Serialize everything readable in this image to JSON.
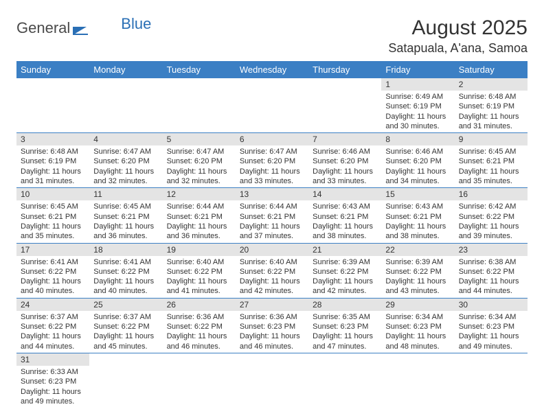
{
  "logo": {
    "part1": "General",
    "part2": "Blue"
  },
  "title": "August 2025",
  "location": "Satapuala, A'ana, Samoa",
  "colors": {
    "headerBg": "#3b7fc4",
    "headerText": "#ffffff",
    "dayNumBg": "#e4e4e4",
    "cellBorder": "#3b7fc4",
    "bodyText": "#333333",
    "logoGray": "#4a4a4a",
    "logoBlue": "#2a6fb5"
  },
  "dayHeaders": [
    "Sunday",
    "Monday",
    "Tuesday",
    "Wednesday",
    "Thursday",
    "Friday",
    "Saturday"
  ],
  "weeks": [
    [
      null,
      null,
      null,
      null,
      null,
      {
        "n": "1",
        "sunrise": "Sunrise: 6:49 AM",
        "sunset": "Sunset: 6:19 PM",
        "daylight": "Daylight: 11 hours and 30 minutes."
      },
      {
        "n": "2",
        "sunrise": "Sunrise: 6:48 AM",
        "sunset": "Sunset: 6:19 PM",
        "daylight": "Daylight: 11 hours and 31 minutes."
      }
    ],
    [
      {
        "n": "3",
        "sunrise": "Sunrise: 6:48 AM",
        "sunset": "Sunset: 6:19 PM",
        "daylight": "Daylight: 11 hours and 31 minutes."
      },
      {
        "n": "4",
        "sunrise": "Sunrise: 6:47 AM",
        "sunset": "Sunset: 6:20 PM",
        "daylight": "Daylight: 11 hours and 32 minutes."
      },
      {
        "n": "5",
        "sunrise": "Sunrise: 6:47 AM",
        "sunset": "Sunset: 6:20 PM",
        "daylight": "Daylight: 11 hours and 32 minutes."
      },
      {
        "n": "6",
        "sunrise": "Sunrise: 6:47 AM",
        "sunset": "Sunset: 6:20 PM",
        "daylight": "Daylight: 11 hours and 33 minutes."
      },
      {
        "n": "7",
        "sunrise": "Sunrise: 6:46 AM",
        "sunset": "Sunset: 6:20 PM",
        "daylight": "Daylight: 11 hours and 33 minutes."
      },
      {
        "n": "8",
        "sunrise": "Sunrise: 6:46 AM",
        "sunset": "Sunset: 6:20 PM",
        "daylight": "Daylight: 11 hours and 34 minutes."
      },
      {
        "n": "9",
        "sunrise": "Sunrise: 6:45 AM",
        "sunset": "Sunset: 6:21 PM",
        "daylight": "Daylight: 11 hours and 35 minutes."
      }
    ],
    [
      {
        "n": "10",
        "sunrise": "Sunrise: 6:45 AM",
        "sunset": "Sunset: 6:21 PM",
        "daylight": "Daylight: 11 hours and 35 minutes."
      },
      {
        "n": "11",
        "sunrise": "Sunrise: 6:45 AM",
        "sunset": "Sunset: 6:21 PM",
        "daylight": "Daylight: 11 hours and 36 minutes."
      },
      {
        "n": "12",
        "sunrise": "Sunrise: 6:44 AM",
        "sunset": "Sunset: 6:21 PM",
        "daylight": "Daylight: 11 hours and 36 minutes."
      },
      {
        "n": "13",
        "sunrise": "Sunrise: 6:44 AM",
        "sunset": "Sunset: 6:21 PM",
        "daylight": "Daylight: 11 hours and 37 minutes."
      },
      {
        "n": "14",
        "sunrise": "Sunrise: 6:43 AM",
        "sunset": "Sunset: 6:21 PM",
        "daylight": "Daylight: 11 hours and 38 minutes."
      },
      {
        "n": "15",
        "sunrise": "Sunrise: 6:43 AM",
        "sunset": "Sunset: 6:21 PM",
        "daylight": "Daylight: 11 hours and 38 minutes."
      },
      {
        "n": "16",
        "sunrise": "Sunrise: 6:42 AM",
        "sunset": "Sunset: 6:22 PM",
        "daylight": "Daylight: 11 hours and 39 minutes."
      }
    ],
    [
      {
        "n": "17",
        "sunrise": "Sunrise: 6:41 AM",
        "sunset": "Sunset: 6:22 PM",
        "daylight": "Daylight: 11 hours and 40 minutes."
      },
      {
        "n": "18",
        "sunrise": "Sunrise: 6:41 AM",
        "sunset": "Sunset: 6:22 PM",
        "daylight": "Daylight: 11 hours and 40 minutes."
      },
      {
        "n": "19",
        "sunrise": "Sunrise: 6:40 AM",
        "sunset": "Sunset: 6:22 PM",
        "daylight": "Daylight: 11 hours and 41 minutes."
      },
      {
        "n": "20",
        "sunrise": "Sunrise: 6:40 AM",
        "sunset": "Sunset: 6:22 PM",
        "daylight": "Daylight: 11 hours and 42 minutes."
      },
      {
        "n": "21",
        "sunrise": "Sunrise: 6:39 AM",
        "sunset": "Sunset: 6:22 PM",
        "daylight": "Daylight: 11 hours and 42 minutes."
      },
      {
        "n": "22",
        "sunrise": "Sunrise: 6:39 AM",
        "sunset": "Sunset: 6:22 PM",
        "daylight": "Daylight: 11 hours and 43 minutes."
      },
      {
        "n": "23",
        "sunrise": "Sunrise: 6:38 AM",
        "sunset": "Sunset: 6:22 PM",
        "daylight": "Daylight: 11 hours and 44 minutes."
      }
    ],
    [
      {
        "n": "24",
        "sunrise": "Sunrise: 6:37 AM",
        "sunset": "Sunset: 6:22 PM",
        "daylight": "Daylight: 11 hours and 44 minutes."
      },
      {
        "n": "25",
        "sunrise": "Sunrise: 6:37 AM",
        "sunset": "Sunset: 6:22 PM",
        "daylight": "Daylight: 11 hours and 45 minutes."
      },
      {
        "n": "26",
        "sunrise": "Sunrise: 6:36 AM",
        "sunset": "Sunset: 6:22 PM",
        "daylight": "Daylight: 11 hours and 46 minutes."
      },
      {
        "n": "27",
        "sunrise": "Sunrise: 6:36 AM",
        "sunset": "Sunset: 6:23 PM",
        "daylight": "Daylight: 11 hours and 46 minutes."
      },
      {
        "n": "28",
        "sunrise": "Sunrise: 6:35 AM",
        "sunset": "Sunset: 6:23 PM",
        "daylight": "Daylight: 11 hours and 47 minutes."
      },
      {
        "n": "29",
        "sunrise": "Sunrise: 6:34 AM",
        "sunset": "Sunset: 6:23 PM",
        "daylight": "Daylight: 11 hours and 48 minutes."
      },
      {
        "n": "30",
        "sunrise": "Sunrise: 6:34 AM",
        "sunset": "Sunset: 6:23 PM",
        "daylight": "Daylight: 11 hours and 49 minutes."
      }
    ],
    [
      {
        "n": "31",
        "sunrise": "Sunrise: 6:33 AM",
        "sunset": "Sunset: 6:23 PM",
        "daylight": "Daylight: 11 hours and 49 minutes."
      },
      null,
      null,
      null,
      null,
      null,
      null
    ]
  ]
}
